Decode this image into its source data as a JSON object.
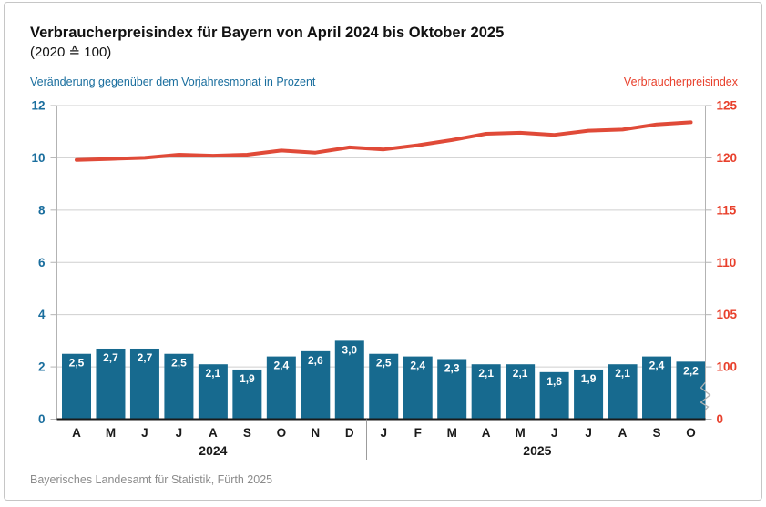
{
  "card": {
    "title": "Verbraucherpreisindex für Bayern von April 2024 bis Oktober 2025",
    "subtitle": "(2020 ≙ 100)",
    "source": "Bayerisches Landesamt für Statistik, Fürth 2025"
  },
  "chart_data": {
    "type": "bar+line",
    "title": "Verbraucherpreisindex für Bayern von April 2024 bis Oktober 2025",
    "subtitle": "(2020 ≙ 100)",
    "grid": true,
    "categories": [
      "A",
      "M",
      "J",
      "J",
      "A",
      "S",
      "O",
      "N",
      "D",
      "J",
      "F",
      "M",
      "A",
      "M",
      "J",
      "J",
      "A",
      "S",
      "O"
    ],
    "year_groups": [
      {
        "label": "2024",
        "from": 0,
        "to": 8
      },
      {
        "label": "2025",
        "from": 9,
        "to": 18
      }
    ],
    "left_axis": {
      "label": "Veränderung gegenüber dem Vorjahresmonat in Prozent",
      "ticks": [
        0,
        2,
        4,
        6,
        8,
        10,
        12
      ],
      "range": [
        0,
        12
      ],
      "color": "#1a6e9e"
    },
    "right_axis": {
      "label": "Verbraucherpreisindex",
      "ticks": [
        100,
        105,
        110,
        115,
        120,
        125
      ],
      "bottom_tick": 0,
      "axis_break_between": [
        0,
        100
      ],
      "color": "#e8402c"
    },
    "series": [
      {
        "name": "Veränderung gegenüber dem Vorjahresmonat in Prozent",
        "type": "bar",
        "color": "#176a8f",
        "label_color": "#ffffff",
        "values": [
          2.5,
          2.7,
          2.7,
          2.5,
          2.1,
          1.9,
          2.4,
          2.6,
          3.0,
          2.5,
          2.4,
          2.3,
          2.1,
          2.1,
          1.8,
          1.9,
          2.1,
          2.4,
          2.2
        ],
        "value_labels": [
          "2,5",
          "2,7",
          "2,7",
          "2,5",
          "2,1",
          "1,9",
          "2,4",
          "2,6",
          "3,0",
          "2,5",
          "2,4",
          "2,3",
          "2,1",
          "2,1",
          "1,8",
          "1,9",
          "2,1",
          "2,4",
          "2,2"
        ]
      },
      {
        "name": "Verbraucherpreisindex",
        "type": "line",
        "color": "#e04a38",
        "values": [
          119.8,
          119.9,
          120.0,
          120.3,
          120.2,
          120.3,
          120.7,
          120.5,
          121.0,
          120.8,
          121.2,
          121.7,
          122.3,
          122.4,
          122.2,
          122.6,
          122.7,
          123.2,
          123.4
        ]
      }
    ]
  }
}
